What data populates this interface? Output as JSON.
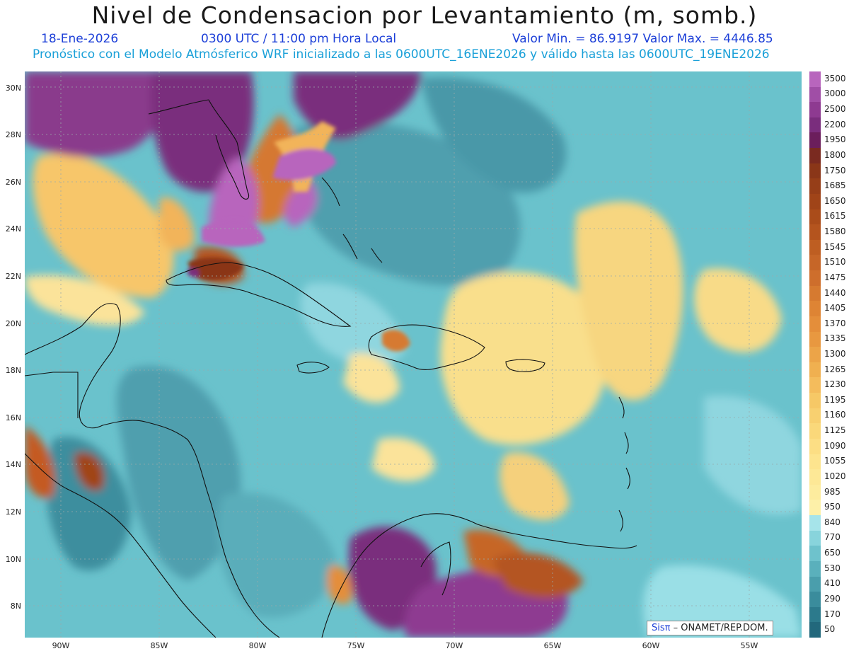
{
  "header": {
    "title": "Nivel de Condensacion por Levantamiento (m, somb.)",
    "date": "18-Ene-2026",
    "time": "0300 UTC / 11:00 pm Hora Local",
    "min_max": "Valor Min. = 86.9197  Valor Max. = 4446.85",
    "model_line": "Pronóstico con el Modelo Atmósferico WRF inicializado a las 0600UTC_16ENE2026 y válido hasta las  0600UTC_19ENE2026"
  },
  "axes": {
    "lat_labels": [
      "30N",
      "28N",
      "26N",
      "24N",
      "22N",
      "20N",
      "18N",
      "16N",
      "14N",
      "12N",
      "10N",
      "8N"
    ],
    "lon_labels": [
      "90W",
      "85W",
      "80W",
      "75W",
      "70W",
      "65W",
      "60W",
      "55W"
    ]
  },
  "colorbar": {
    "labels": [
      "3500",
      "3000",
      "2500",
      "2200",
      "1950",
      "1800",
      "1750",
      "1685",
      "1650",
      "1615",
      "1580",
      "1545",
      "1510",
      "1475",
      "1440",
      "1405",
      "1370",
      "1335",
      "1300",
      "1265",
      "1230",
      "1195",
      "1160",
      "1125",
      "1090",
      "1055",
      "1020",
      "985",
      "950",
      "840",
      "770",
      "650",
      "530",
      "410",
      "290",
      "170",
      "50"
    ],
    "colors": [
      "#b865bd",
      "#a04ea6",
      "#8e3a91",
      "#7a2d7d",
      "#6b1e5c",
      "#7a2a20",
      "#8a3618",
      "#963e18",
      "#a04418",
      "#aa4c1a",
      "#b4541e",
      "#be5e22",
      "#c66628",
      "#ce6e2c",
      "#d67a30",
      "#de8434",
      "#e48e3a",
      "#e89840",
      "#eca448",
      "#f0b050",
      "#f4bc5c",
      "#f6c866",
      "#f8d070",
      "#fad87a",
      "#fcde84",
      "#fde48e",
      "#fde896",
      "#fdec9e",
      "#fdf0a8",
      "#a6e4ea",
      "#88d4dc",
      "#6ec2cc",
      "#5ab0bc",
      "#4a9eac",
      "#3a8c9c",
      "#2c7a8c",
      "#22687c"
    ]
  },
  "credit": {
    "brand": "Sisπ",
    "text": " – ONAMET/REP.DOM."
  }
}
